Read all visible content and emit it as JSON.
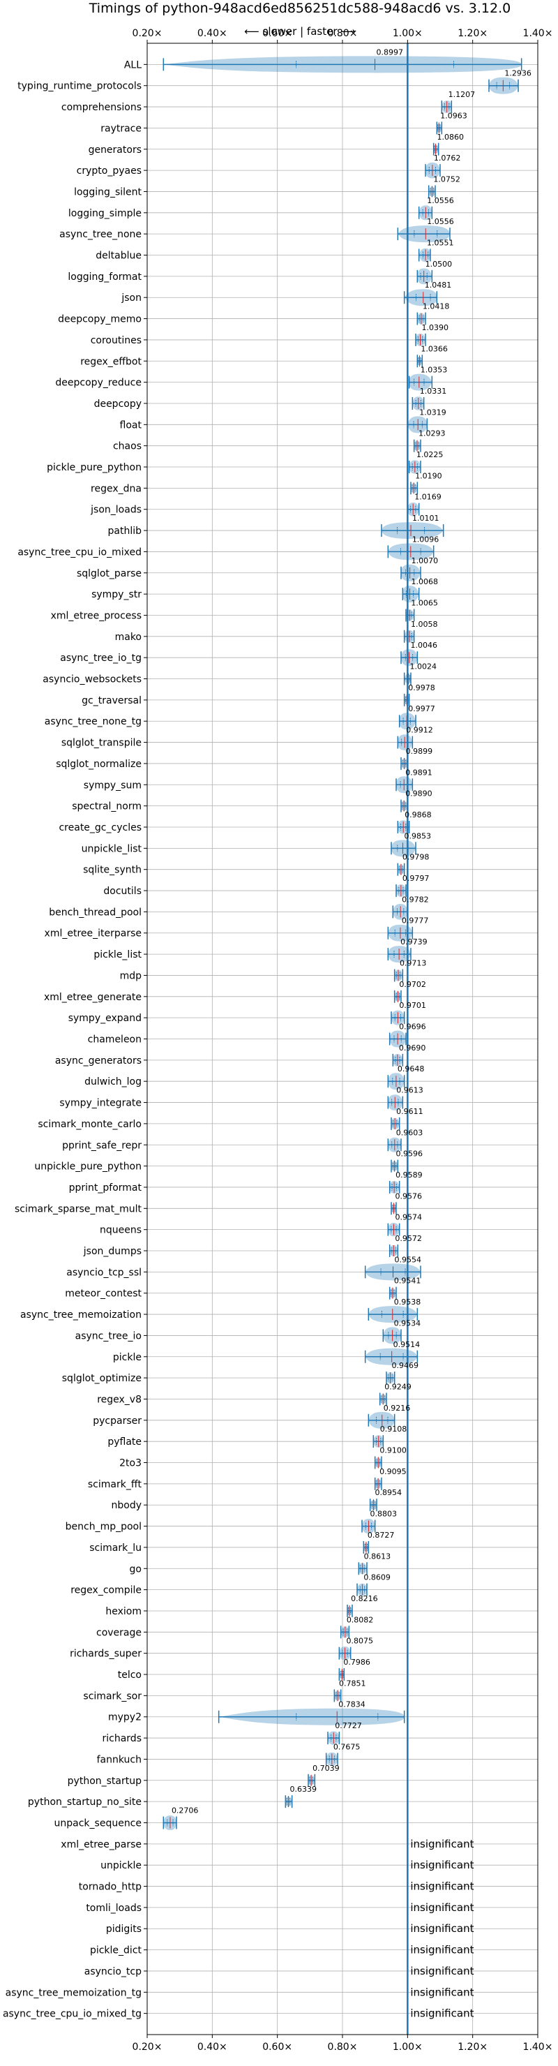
{
  "chart_data": {
    "type": "violin",
    "title": "Timings of python-948acd6ed856251dc588-948acd6 vs. 3.12.0",
    "subtitle": "⟵ slower | faster ⟶",
    "xlim": [
      0.2,
      1.4
    ],
    "xticks": [
      0.2,
      0.4,
      0.6,
      0.8,
      1.0,
      1.2,
      1.4
    ],
    "xtick_labels": [
      "0.20×",
      "0.40×",
      "0.60×",
      "0.80×",
      "1.00×",
      "1.20×",
      "1.40×"
    ],
    "reference_line": 1.0,
    "grid": true,
    "insignificant_label": "insignificant",
    "benchmarks": [
      {
        "name": "ALL",
        "value": 0.8997,
        "label": "0.8997",
        "lo": 0.25,
        "hi": 1.35
      },
      {
        "name": "typing_runtime_protocols",
        "value": 1.2936,
        "label": "1.2936",
        "lo": 1.25,
        "hi": 1.34
      },
      {
        "name": "comprehensions",
        "value": 1.1207,
        "label": "1.1207",
        "lo": 1.105,
        "hi": 1.135
      },
      {
        "name": "raytrace",
        "value": 1.0963,
        "label": "1.0963",
        "lo": 1.09,
        "hi": 1.105
      },
      {
        "name": "generators",
        "value": 1.086,
        "label": "1.0860",
        "lo": 1.08,
        "hi": 1.095
      },
      {
        "name": "crypto_pyaes",
        "value": 1.0762,
        "label": "1.0762",
        "lo": 1.055,
        "hi": 1.1
      },
      {
        "name": "logging_silent",
        "value": 1.0752,
        "label": "1.0752",
        "lo": 1.065,
        "hi": 1.085
      },
      {
        "name": "logging_simple",
        "value": 1.0556,
        "label": "1.0556",
        "lo": 1.035,
        "hi": 1.075
      },
      {
        "name": "async_tree_none",
        "value": 1.0556,
        "label": "1.0556",
        "lo": 0.97,
        "hi": 1.13
      },
      {
        "name": "deltablue",
        "value": 1.0551,
        "label": "1.0551",
        "lo": 1.035,
        "hi": 1.07
      },
      {
        "name": "logging_format",
        "value": 1.05,
        "label": "1.0500",
        "lo": 1.03,
        "hi": 1.075
      },
      {
        "name": "json",
        "value": 1.0481,
        "label": "1.0481",
        "lo": 0.99,
        "hi": 1.09
      },
      {
        "name": "deepcopy_memo",
        "value": 1.0418,
        "label": "1.0418",
        "lo": 1.03,
        "hi": 1.055
      },
      {
        "name": "coroutines",
        "value": 1.039,
        "label": "1.0390",
        "lo": 1.025,
        "hi": 1.055
      },
      {
        "name": "regex_effbot",
        "value": 1.0366,
        "label": "1.0366",
        "lo": 1.03,
        "hi": 1.045
      },
      {
        "name": "deepcopy_reduce",
        "value": 1.0353,
        "label": "1.0353",
        "lo": 1.005,
        "hi": 1.075
      },
      {
        "name": "deepcopy",
        "value": 1.0331,
        "label": "1.0331",
        "lo": 1.015,
        "hi": 1.05
      },
      {
        "name": "float",
        "value": 1.0319,
        "label": "1.0319",
        "lo": 1.0,
        "hi": 1.06
      },
      {
        "name": "chaos",
        "value": 1.0293,
        "label": "1.0293",
        "lo": 1.02,
        "hi": 1.04
      },
      {
        "name": "pickle_pure_python",
        "value": 1.0225,
        "label": "1.0225",
        "lo": 1.005,
        "hi": 1.04
      },
      {
        "name": "regex_dna",
        "value": 1.019,
        "label": "1.0190",
        "lo": 1.01,
        "hi": 1.03
      },
      {
        "name": "json_loads",
        "value": 1.0169,
        "label": "1.0169",
        "lo": 1.0,
        "hi": 1.035
      },
      {
        "name": "pathlib",
        "value": 1.0101,
        "label": "1.0101",
        "lo": 0.92,
        "hi": 1.11
      },
      {
        "name": "async_tree_cpu_io_mixed",
        "value": 1.0096,
        "label": "1.0096",
        "lo": 0.94,
        "hi": 1.08
      },
      {
        "name": "sqlglot_parse",
        "value": 1.007,
        "label": "1.0070",
        "lo": 0.98,
        "hi": 1.04
      },
      {
        "name": "sympy_str",
        "value": 1.0068,
        "label": "1.0068",
        "lo": 0.985,
        "hi": 1.035
      },
      {
        "name": "xml_etree_process",
        "value": 1.0065,
        "label": "1.0065",
        "lo": 0.995,
        "hi": 1.02
      },
      {
        "name": "mako",
        "value": 1.0058,
        "label": "1.0058",
        "lo": 0.99,
        "hi": 1.02
      },
      {
        "name": "async_tree_io_tg",
        "value": 1.0046,
        "label": "1.0046",
        "lo": 0.98,
        "hi": 1.03
      },
      {
        "name": "asyncio_websockets",
        "value": 1.0024,
        "label": "1.0024",
        "lo": 0.99,
        "hi": 1.01
      },
      {
        "name": "gc_traversal",
        "value": 0.9978,
        "label": "0.9978",
        "lo": 0.99,
        "hi": 1.005
      },
      {
        "name": "async_tree_none_tg",
        "value": 0.9977,
        "label": "0.9977",
        "lo": 0.975,
        "hi": 1.025
      },
      {
        "name": "sqlglot_transpile",
        "value": 0.9912,
        "label": "0.9912",
        "lo": 0.97,
        "hi": 1.015
      },
      {
        "name": "sqlglot_normalize",
        "value": 0.9899,
        "label": "0.9899",
        "lo": 0.98,
        "hi": 1.0
      },
      {
        "name": "sympy_sum",
        "value": 0.9891,
        "label": "0.9891",
        "lo": 0.965,
        "hi": 1.015
      },
      {
        "name": "spectral_norm",
        "value": 0.989,
        "label": "0.9890",
        "lo": 0.98,
        "hi": 1.0
      },
      {
        "name": "create_gc_cycles",
        "value": 0.9868,
        "label": "0.9868",
        "lo": 0.97,
        "hi": 1.005
      },
      {
        "name": "unpickle_list",
        "value": 0.9853,
        "label": "0.9853",
        "lo": 0.95,
        "hi": 1.025
      },
      {
        "name": "sqlite_synth",
        "value": 0.9798,
        "label": "0.9798",
        "lo": 0.97,
        "hi": 0.99
      },
      {
        "name": "docutils",
        "value": 0.9797,
        "label": "0.9797",
        "lo": 0.965,
        "hi": 0.995
      },
      {
        "name": "bench_thread_pool",
        "value": 0.9782,
        "label": "0.9782",
        "lo": 0.955,
        "hi": 1.0
      },
      {
        "name": "xml_etree_iterparse",
        "value": 0.9777,
        "label": "0.9777",
        "lo": 0.94,
        "hi": 1.015
      },
      {
        "name": "pickle_list",
        "value": 0.9739,
        "label": "0.9739",
        "lo": 0.94,
        "hi": 1.01
      },
      {
        "name": "mdp",
        "value": 0.9713,
        "label": "0.9713",
        "lo": 0.96,
        "hi": 0.985
      },
      {
        "name": "xml_etree_generate",
        "value": 0.9702,
        "label": "0.9702",
        "lo": 0.96,
        "hi": 0.98
      },
      {
        "name": "sympy_expand",
        "value": 0.9701,
        "label": "0.9701",
        "lo": 0.95,
        "hi": 0.99
      },
      {
        "name": "chameleon",
        "value": 0.9696,
        "label": "0.9696",
        "lo": 0.945,
        "hi": 0.995
      },
      {
        "name": "async_generators",
        "value": 0.969,
        "label": "0.9690",
        "lo": 0.955,
        "hi": 0.985
      },
      {
        "name": "dulwich_log",
        "value": 0.9648,
        "label": "0.9648",
        "lo": 0.94,
        "hi": 0.99
      },
      {
        "name": "sympy_integrate",
        "value": 0.9613,
        "label": "0.9613",
        "lo": 0.94,
        "hi": 0.985
      },
      {
        "name": "scimark_monte_carlo",
        "value": 0.9611,
        "label": "0.9611",
        "lo": 0.95,
        "hi": 0.975
      },
      {
        "name": "pprint_safe_repr",
        "value": 0.9603,
        "label": "0.9603",
        "lo": 0.94,
        "hi": 0.98
      },
      {
        "name": "unpickle_pure_python",
        "value": 0.9596,
        "label": "0.9596",
        "lo": 0.95,
        "hi": 0.97
      },
      {
        "name": "pprint_pformat",
        "value": 0.9589,
        "label": "0.9589",
        "lo": 0.945,
        "hi": 0.975
      },
      {
        "name": "scimark_sparse_mat_mult",
        "value": 0.9576,
        "label": "0.9576",
        "lo": 0.95,
        "hi": 0.965
      },
      {
        "name": "nqueens",
        "value": 0.9574,
        "label": "0.9574",
        "lo": 0.94,
        "hi": 0.975
      },
      {
        "name": "json_dumps",
        "value": 0.9572,
        "label": "0.9572",
        "lo": 0.945,
        "hi": 0.97
      },
      {
        "name": "asyncio_tcp_ssl",
        "value": 0.9554,
        "label": "0.9554",
        "lo": 0.87,
        "hi": 1.04
      },
      {
        "name": "meteor_contest",
        "value": 0.9541,
        "label": "0.9541",
        "lo": 0.945,
        "hi": 0.965
      },
      {
        "name": "async_tree_memoization",
        "value": 0.9538,
        "label": "0.9538",
        "lo": 0.88,
        "hi": 1.03
      },
      {
        "name": "async_tree_io",
        "value": 0.9534,
        "label": "0.9534",
        "lo": 0.925,
        "hi": 0.98
      },
      {
        "name": "pickle",
        "value": 0.9514,
        "label": "0.9514",
        "lo": 0.87,
        "hi": 1.03
      },
      {
        "name": "sqlglot_optimize",
        "value": 0.9469,
        "label": "0.9469",
        "lo": 0.935,
        "hi": 0.96
      },
      {
        "name": "regex_v8",
        "value": 0.9249,
        "label": "0.9249",
        "lo": 0.915,
        "hi": 0.935
      },
      {
        "name": "pycparser",
        "value": 0.9216,
        "label": "0.9216",
        "lo": 0.88,
        "hi": 0.96
      },
      {
        "name": "pyflate",
        "value": 0.9108,
        "label": "0.9108",
        "lo": 0.895,
        "hi": 0.925
      },
      {
        "name": "2to3",
        "value": 0.91,
        "label": "0.9100",
        "lo": 0.9,
        "hi": 0.92
      },
      {
        "name": "scimark_fft",
        "value": 0.9095,
        "label": "0.9095",
        "lo": 0.9,
        "hi": 0.92
      },
      {
        "name": "nbody",
        "value": 0.8954,
        "label": "0.8954",
        "lo": 0.885,
        "hi": 0.905
      },
      {
        "name": "bench_mp_pool",
        "value": 0.8803,
        "label": "0.8803",
        "lo": 0.86,
        "hi": 0.9
      },
      {
        "name": "scimark_lu",
        "value": 0.8727,
        "label": "0.8727",
        "lo": 0.865,
        "hi": 0.88
      },
      {
        "name": "go",
        "value": 0.8613,
        "label": "0.8613",
        "lo": 0.85,
        "hi": 0.875
      },
      {
        "name": "regex_compile",
        "value": 0.8609,
        "label": "0.8609",
        "lo": 0.845,
        "hi": 0.875
      },
      {
        "name": "hexiom",
        "value": 0.8216,
        "label": "0.8216",
        "lo": 0.815,
        "hi": 0.83
      },
      {
        "name": "coverage",
        "value": 0.8082,
        "label": "0.8082",
        "lo": 0.795,
        "hi": 0.82
      },
      {
        "name": "richards_super",
        "value": 0.8075,
        "label": "0.8075",
        "lo": 0.79,
        "hi": 0.825
      },
      {
        "name": "telco",
        "value": 0.7986,
        "label": "0.7986",
        "lo": 0.79,
        "hi": 0.805
      },
      {
        "name": "scimark_sor",
        "value": 0.7851,
        "label": "0.7851",
        "lo": 0.775,
        "hi": 0.795
      },
      {
        "name": "mypy2",
        "value": 0.7834,
        "label": "0.7834",
        "lo": 0.42,
        "hi": 0.99
      },
      {
        "name": "richards",
        "value": 0.7727,
        "label": "0.7727",
        "lo": 0.755,
        "hi": 0.79
      },
      {
        "name": "fannkuch",
        "value": 0.7675,
        "label": "0.7675",
        "lo": 0.75,
        "hi": 0.785
      },
      {
        "name": "python_startup",
        "value": 0.7039,
        "label": "0.7039",
        "lo": 0.695,
        "hi": 0.715
      },
      {
        "name": "python_startup_no_site",
        "value": 0.6339,
        "label": "0.6339",
        "lo": 0.625,
        "hi": 0.645
      },
      {
        "name": "unpack_sequence",
        "value": 0.2706,
        "label": "0.2706",
        "lo": 0.25,
        "hi": 0.29
      },
      {
        "name": "xml_etree_parse",
        "insignificant": true
      },
      {
        "name": "unpickle",
        "insignificant": true
      },
      {
        "name": "tornado_http",
        "insignificant": true
      },
      {
        "name": "tomli_loads",
        "insignificant": true
      },
      {
        "name": "pidigits",
        "insignificant": true
      },
      {
        "name": "pickle_dict",
        "insignificant": true
      },
      {
        "name": "asyncio_tcp",
        "insignificant": true
      },
      {
        "name": "async_tree_memoization_tg",
        "insignificant": true
      },
      {
        "name": "async_tree_cpu_io_mixed_tg",
        "insignificant": true
      }
    ],
    "colors": {
      "violin": "#1f77b4",
      "median": "#d62728",
      "grid": "#b0b0b0",
      "reference": "#1f77b4"
    }
  }
}
